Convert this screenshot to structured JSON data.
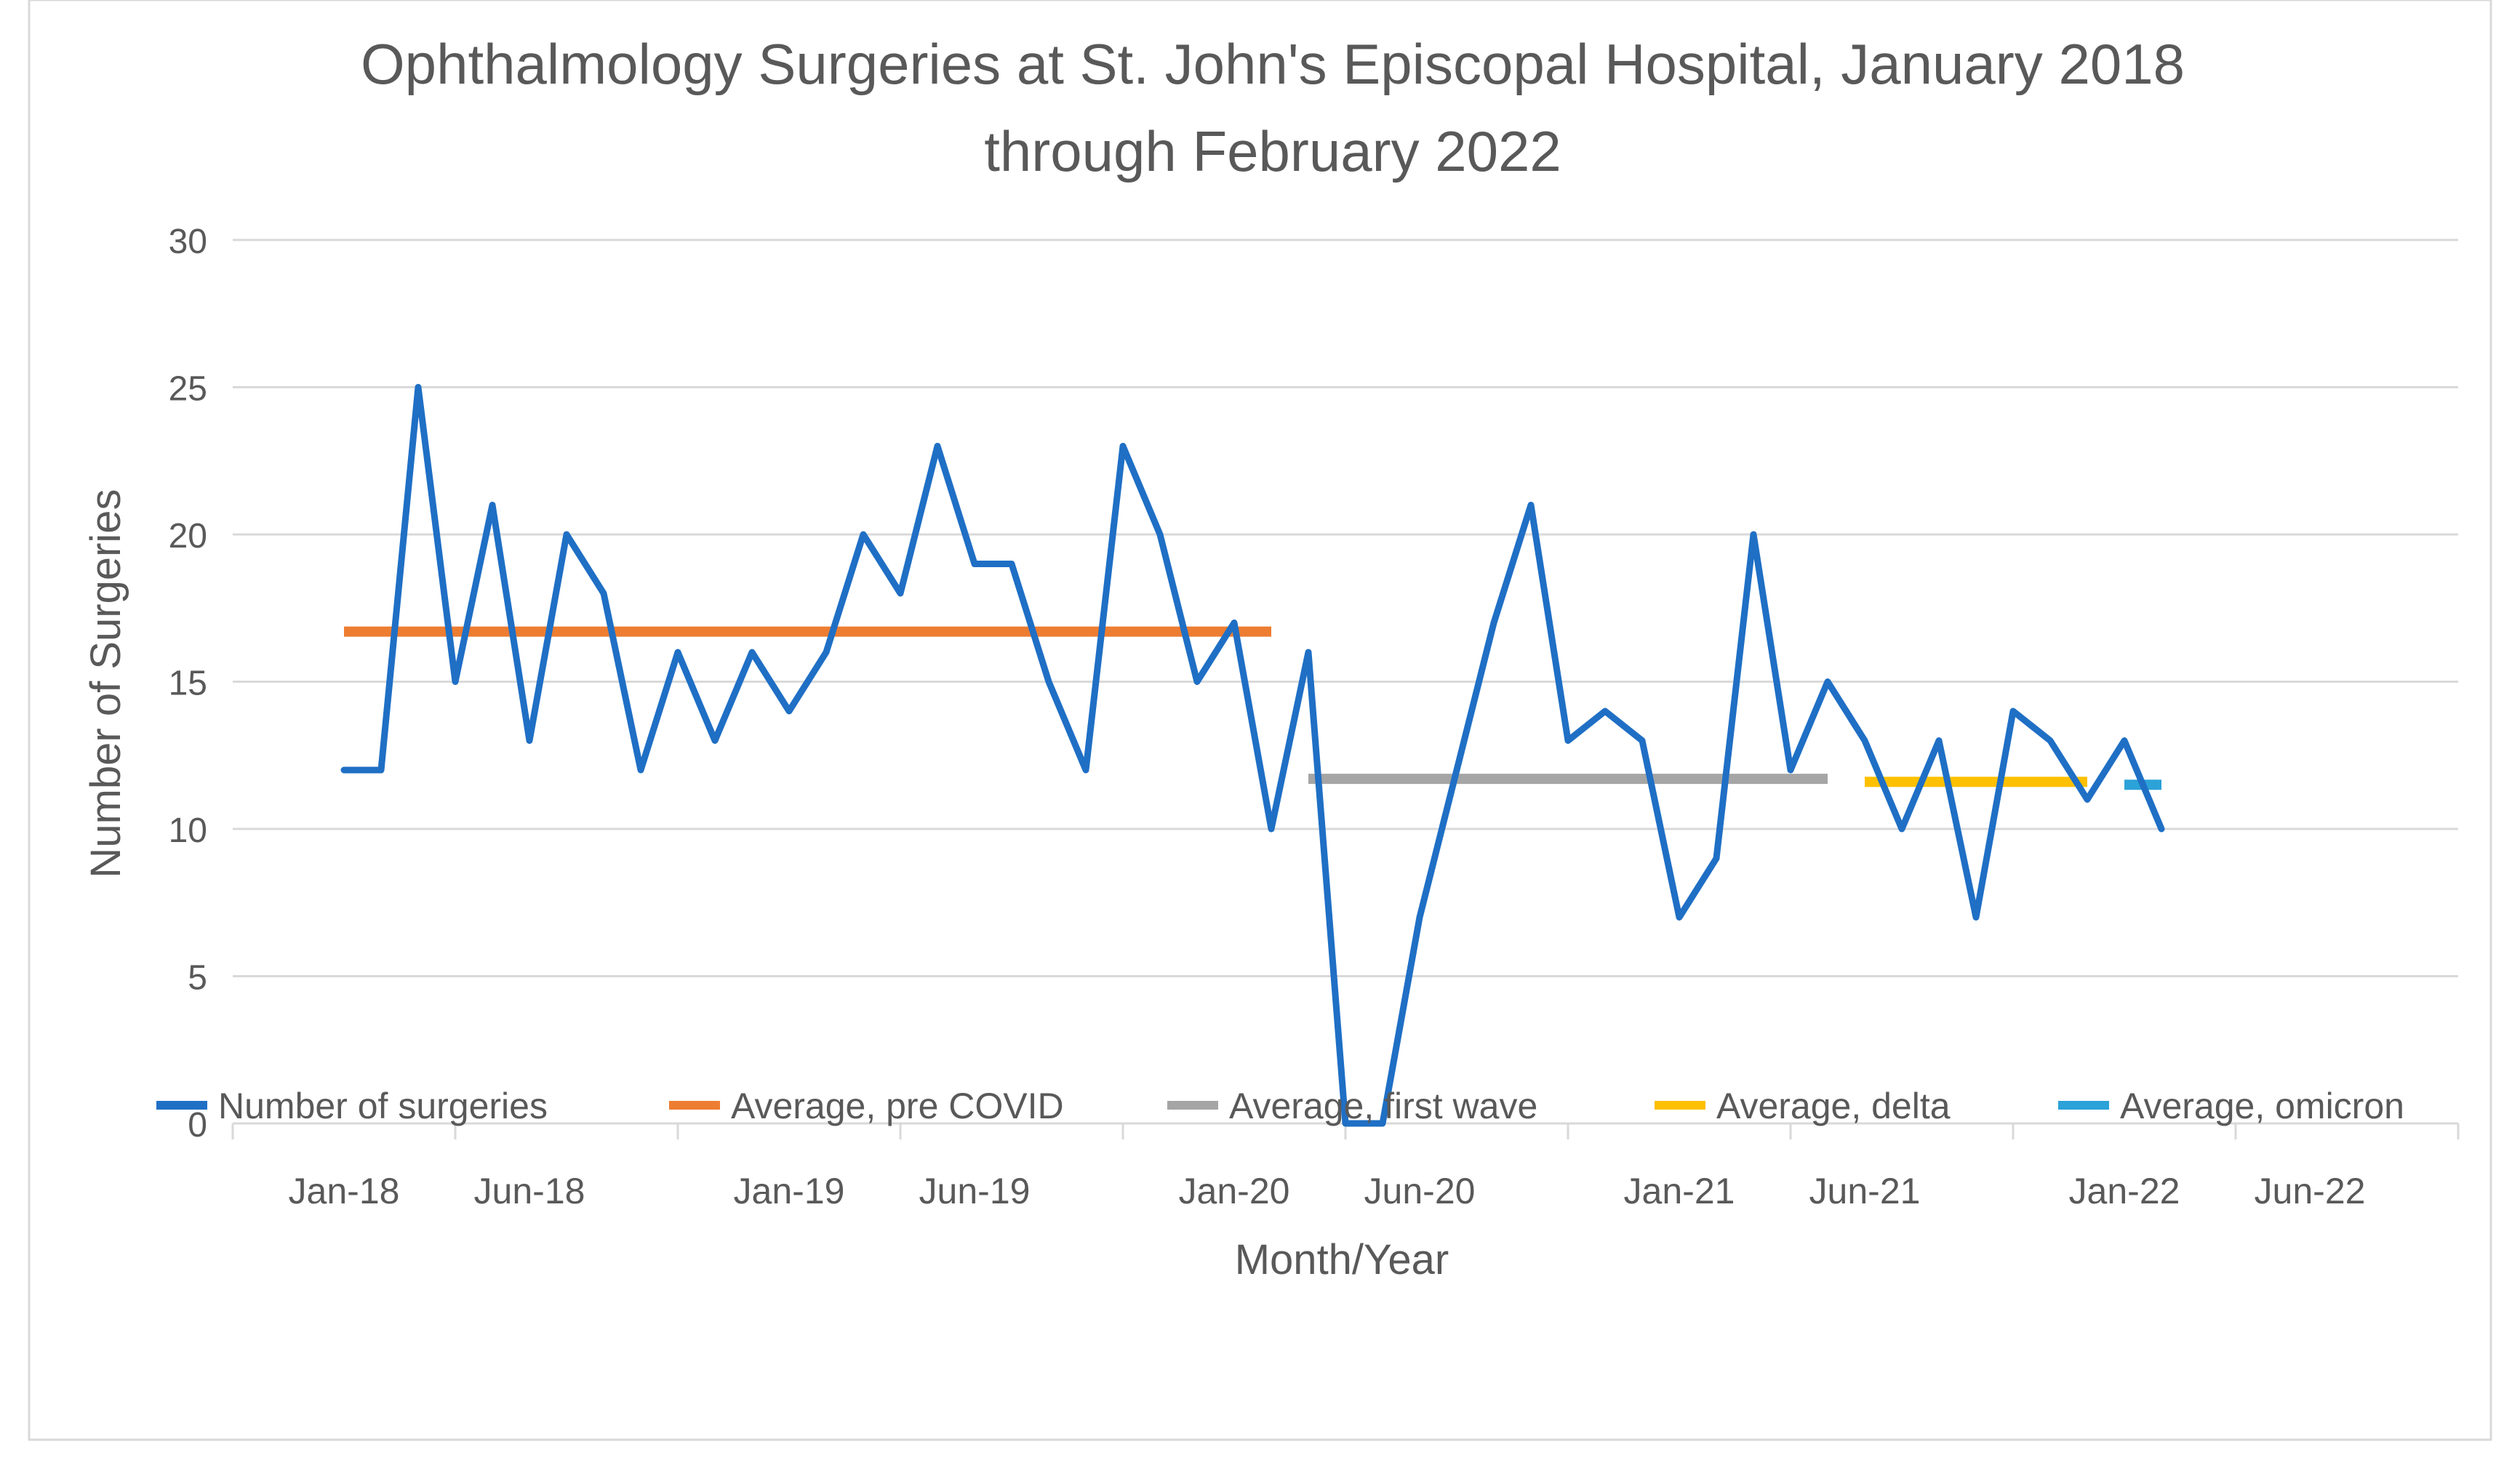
{
  "chart_data": {
    "type": "line",
    "title_line1": "Ophthalmology Surgeries at St. John's Episcopal Hospital, January 2018",
    "title_line2": "through February 2022",
    "xlabel": "Month/Year",
    "ylabel": "Number of Surgeries",
    "ylim": [
      0,
      30
    ],
    "y_ticks": [
      "0",
      "5",
      "10",
      "15",
      "20",
      "25",
      "30"
    ],
    "x_tick_labels": [
      "Jan-18",
      "Jun-18",
      "Jan-19",
      "Jun-19",
      "Jan-20",
      "Jun-20",
      "Jan-21",
      "Jun-21",
      "Jan-22",
      "Jun-22"
    ],
    "x_tick_months": [
      0,
      5,
      12,
      17,
      24,
      29,
      36,
      41,
      48,
      53
    ],
    "x_range_months": [
      -3,
      57
    ],
    "grid": true,
    "legend_position": "bottom",
    "series": [
      {
        "name": "Number of surgeries",
        "color": "#1f6fc5",
        "x_months": [
          0,
          1,
          2,
          3,
          4,
          5,
          6,
          7,
          8,
          9,
          10,
          11,
          12,
          13,
          14,
          15,
          16,
          17,
          18,
          19,
          20,
          21,
          22,
          23,
          24,
          25,
          26,
          27,
          28,
          29,
          30,
          31,
          32,
          33,
          34,
          35,
          36,
          37,
          38,
          39,
          40,
          41,
          42,
          43,
          44,
          45,
          46,
          47,
          48,
          49
        ],
        "values": [
          12,
          12,
          25,
          15,
          21,
          13,
          20,
          18,
          12,
          16,
          13,
          16,
          14,
          16,
          20,
          18,
          23,
          19,
          19,
          15,
          12,
          23,
          20,
          15,
          17,
          10,
          16,
          0,
          0,
          7,
          12,
          17,
          21,
          13,
          14,
          13,
          7,
          9,
          20,
          12,
          15,
          13,
          10,
          13,
          7,
          14,
          13,
          11,
          13,
          10
        ]
      },
      {
        "name": "Average, pre COVID",
        "color": "#ed7d31",
        "x_months": [
          0,
          25
        ],
        "values": [
          16.7,
          16.7
        ]
      },
      {
        "name": "Average, first wave",
        "color": "#a5a5a5",
        "x_months": [
          26,
          40
        ],
        "values": [
          11.7,
          11.7
        ]
      },
      {
        "name": "Average, delta",
        "color": "#ffc000",
        "x_months": [
          41,
          47
        ],
        "values": [
          11.6,
          11.6
        ]
      },
      {
        "name": "Average, omicron",
        "color": "#2ba2d8",
        "x_months": [
          48,
          49
        ],
        "values": [
          11.5,
          11.5
        ]
      }
    ]
  }
}
